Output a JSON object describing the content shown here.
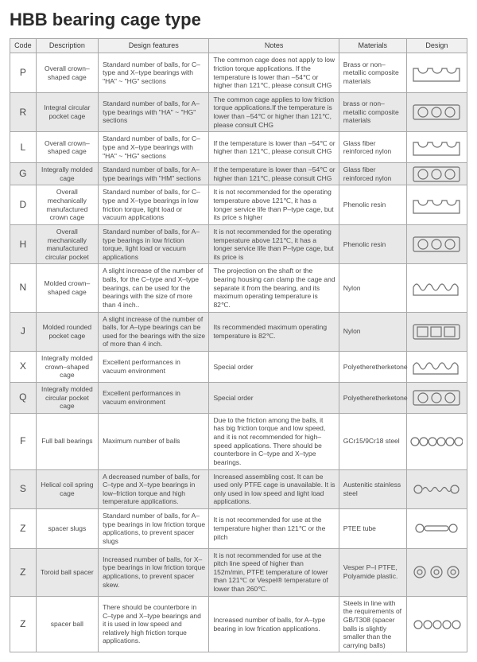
{
  "title": "HBB bearing cage type",
  "headers": {
    "code": "Code",
    "description": "Description",
    "design_features": "Design features",
    "notes": "Notes",
    "materials": "Materials",
    "design": "Design"
  },
  "rows": [
    {
      "code": "P",
      "description": "Overall crown–shaped cage",
      "design_features": "Standard number of balls, for C–type and X–type bearings with \"HA\" ~ \"HG\" sections",
      "notes": "The common cage does not apply to low friction torque applications. If the temperature is lower than –54℃ or higher than 121℃, please consult CHG",
      "materials": "Brass or non–metallic composite materials",
      "design_type": "crown-open",
      "shaded": false
    },
    {
      "code": "R",
      "description": "Integral circular pocket cage",
      "design_features": "Standard number of balls, for A–type bearings with \"HA\" ~ \"HG\" sections",
      "notes": "The common cage applies to low friction torque applications.If the temperature is lower than –54℃ or higher than 121℃, please consult CHG",
      "materials": "brass or non–metallic composite materials",
      "design_type": "circle-rect",
      "shaded": true
    },
    {
      "code": "L",
      "description": "Overall crown–shaped cage",
      "design_features": "Standard number of balls, for C–type and X–type bearings with \"HA\" ~ \"HG\" sections",
      "notes": "If the temperature is lower than –54℃ or higher than 121℃, please consult CHG",
      "materials": "Glass fiber reinforced nylon",
      "design_type": "crown-open",
      "shaded": false
    },
    {
      "code": "G",
      "description": "Integrally molded cage",
      "design_features": "Standard number of balls, for A–type bearings with \"HM\" sections",
      "notes": "If the temperature is lower than –54℃ or higher than 121℃, please consult CHG",
      "materials": "Glass fiber reinforced nylon",
      "design_type": "circle-rect",
      "shaded": true
    },
    {
      "code": "D",
      "description": "Overall mechanically manufactured crown cage",
      "design_features": "Standard number of balls, for C–type and X–type bearings in low friction torque, light load or vacuum applications",
      "notes": "It is not recommended for the operating temperature above 121℃, it has a longer service life than P–type cage, but its price s higher",
      "materials": "Phenolic resin",
      "design_type": "crown-open",
      "shaded": false
    },
    {
      "code": "H",
      "description": "Overall mechanically manufactured circular pocket",
      "design_features": "Standard number of balls, for A–type bearings in low friction torque, light load or vacuum applications",
      "notes": "It is not recommended for the operating temperature above 121℃, it has a longer service life than P–type cage, but its price is",
      "materials": "Phenolic resin",
      "design_type": "circle-rect",
      "shaded": true
    },
    {
      "code": "N",
      "description": "Molded crown–shaped cage",
      "design_features": "A slight increase of the number of balls, for the C–type and X–type bearings, can be used for the bearings with the size of more than 4 inch..",
      "notes": "The projection on the shaft or the bearing housing can clamp the cage and separate it from the bearing, and its maximum operating temperature is 82℃.",
      "materials": "Nylon",
      "design_type": "crown-wavy",
      "shaded": false
    },
    {
      "code": "J",
      "description": "Molded rounded pocket cage",
      "design_features": "A slight increase of the number of balls, for A–type bearings can be used for the bearings with the size of more than 4 inch.",
      "notes": "Its recommended maximum operating temperature is 82℃.",
      "materials": "Nylon",
      "design_type": "square-rect",
      "shaded": true
    },
    {
      "code": "X",
      "description": "Integrally molded crown–shaped cage",
      "design_features": "Excellent performances in vacuum environment",
      "notes": "Special order",
      "materials": "Polyetheretherketone",
      "design_type": "crown-wavy",
      "shaded": false
    },
    {
      "code": "Q",
      "description": "Integrally molded circular pocket cage",
      "design_features": "Excellent performances in vacuum environment",
      "notes": "Special order",
      "materials": "Polyetheretherketone",
      "design_type": "circle-rect",
      "shaded": true
    },
    {
      "code": "F",
      "description": "Full ball bearings",
      "design_features": "Maximum number of balls",
      "notes": "Due to the friction among the balls, it has big friction torque and low speed, and it is not recommended for high–speed applications. There should be counterbore in C–type and X–type bearings.",
      "materials": "GCr15/9Cr18 steel",
      "design_type": "circles-6",
      "shaded": false
    },
    {
      "code": "S",
      "description": "Helical coil spring cage",
      "design_features": "A decreased number of balls, for C–type and X–type bearings in low–friction torque and high temperature applications.",
      "notes": "Increased assembling cost. It can be used only PTFE cage is unavailable. It is only used in low speed and light load applications.",
      "materials": "Austenitic stainless steel",
      "design_type": "coil",
      "shaded": true
    },
    {
      "code": "Z",
      "description": "spacer slugs",
      "design_features": "Standard number of balls, for A–type bearings in low friction torque applications, to prevent spacer slugs",
      "notes": "It is not recommended for use at the temperature higher than 121℃ or the pitch",
      "materials": "PTEE tube",
      "design_type": "slug",
      "shaded": false
    },
    {
      "code": "Z",
      "description": "Toroid ball spacer",
      "design_features": "Increased number of balls, for X–type bearings in low friction torque applications, to prevent spacer skew.",
      "notes": "It is not recommended for use at the pitch line speed of higher than 152m/min, PTFE temperature of lower than 121℃ or Vespel® temperature of lower than 260℃.",
      "materials": "Vesper P–I PTFE, Polyamide plastic.",
      "design_type": "donut",
      "shaded": true
    },
    {
      "code": "Z",
      "description": "spacer ball",
      "design_features": "There should be counterbore in C–type and X–type bearings and it is used in low speed and relatively high friction torque applications.",
      "notes": "Increased number of balls, for A–type bearing in low frication applications.",
      "materials": "Steels in line with the requirements of GB/T308 (spacer balls is slightly smaller than the carrying balls)",
      "design_type": "circles-5",
      "shaded": false
    }
  ],
  "colors": {
    "border": "#a8a8a8",
    "shaded_bg": "#e8e8e8",
    "text": "#4a4a4a",
    "stroke": "#707070"
  }
}
